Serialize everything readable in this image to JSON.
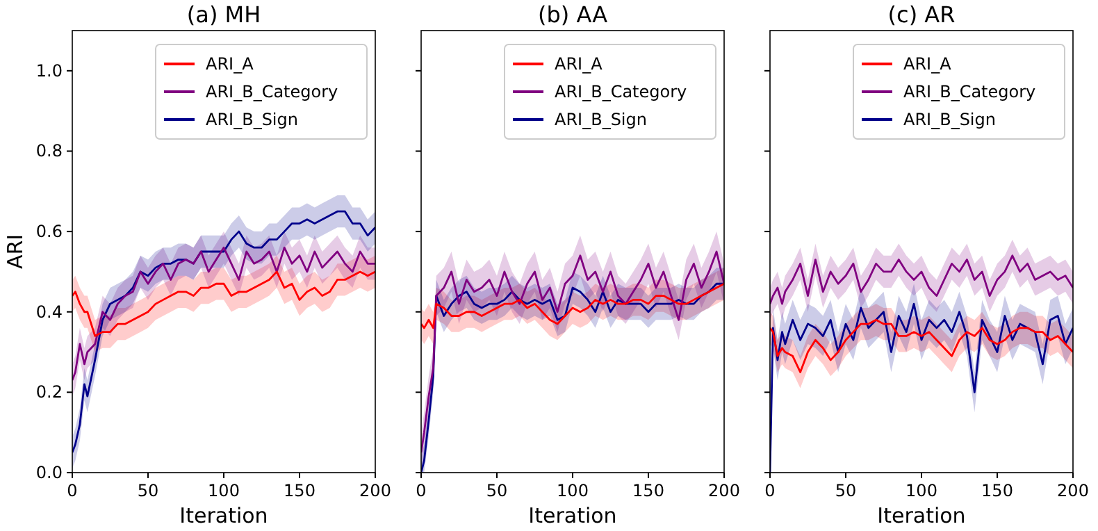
{
  "chart_data": [
    {
      "type": "line",
      "title": "(a) MH",
      "xlabel": "Iteration",
      "ylabel": "ARI",
      "x": [
        0,
        2,
        5,
        8,
        10,
        15,
        20,
        25,
        30,
        35,
        40,
        45,
        50,
        55,
        60,
        65,
        70,
        75,
        80,
        85,
        90,
        95,
        100,
        105,
        110,
        115,
        120,
        125,
        130,
        135,
        140,
        145,
        150,
        155,
        160,
        165,
        170,
        175,
        180,
        185,
        190,
        195,
        200
      ],
      "xlim": [
        0,
        200
      ],
      "xticks": [
        0,
        50,
        100,
        150,
        200
      ],
      "ylim": [
        0,
        1.1
      ],
      "yticks": [
        {
          "value": 0,
          "label": "0.0"
        },
        {
          "value": 0.2,
          "label": "0.2"
        },
        {
          "value": 0.4,
          "label": "0.4"
        },
        {
          "value": 0.6,
          "label": "0.6"
        },
        {
          "value": 0.8,
          "label": "0.8"
        },
        {
          "value": 1,
          "label": "1.0"
        }
      ],
      "legend": "top right",
      "series": [
        {
          "name": "ARI_A",
          "color": "#ff0000",
          "values": [
            0.44,
            0.45,
            0.42,
            0.4,
            0.4,
            0.34,
            0.35,
            0.35,
            0.37,
            0.37,
            0.38,
            0.39,
            0.4,
            0.42,
            0.43,
            0.44,
            0.45,
            0.45,
            0.44,
            0.46,
            0.46,
            0.47,
            0.47,
            0.44,
            0.45,
            0.45,
            0.46,
            0.47,
            0.48,
            0.5,
            0.46,
            0.47,
            0.43,
            0.45,
            0.46,
            0.44,
            0.45,
            0.48,
            0.48,
            0.49,
            0.5,
            0.49,
            0.5
          ],
          "lower": [
            0.4,
            0.41,
            0.38,
            0.36,
            0.36,
            0.3,
            0.31,
            0.31,
            0.33,
            0.33,
            0.34,
            0.35,
            0.36,
            0.38,
            0.39,
            0.4,
            0.41,
            0.41,
            0.4,
            0.42,
            0.42,
            0.43,
            0.43,
            0.4,
            0.41,
            0.41,
            0.42,
            0.43,
            0.44,
            0.46,
            0.42,
            0.43,
            0.39,
            0.41,
            0.42,
            0.4,
            0.41,
            0.44,
            0.44,
            0.45,
            0.46,
            0.45,
            0.46
          ],
          "upper": [
            0.48,
            0.49,
            0.46,
            0.44,
            0.44,
            0.38,
            0.39,
            0.39,
            0.41,
            0.41,
            0.42,
            0.43,
            0.44,
            0.46,
            0.47,
            0.48,
            0.49,
            0.49,
            0.48,
            0.5,
            0.5,
            0.51,
            0.51,
            0.48,
            0.49,
            0.49,
            0.5,
            0.51,
            0.52,
            0.54,
            0.5,
            0.51,
            0.47,
            0.49,
            0.5,
            0.48,
            0.49,
            0.52,
            0.52,
            0.53,
            0.54,
            0.53,
            0.54
          ]
        },
        {
          "name": "ARI_B_Category",
          "color": "#800080",
          "values": [
            0.23,
            0.25,
            0.32,
            0.27,
            0.3,
            0.32,
            0.4,
            0.38,
            0.42,
            0.44,
            0.45,
            0.5,
            0.47,
            0.5,
            0.52,
            0.48,
            0.52,
            0.53,
            0.52,
            0.55,
            0.5,
            0.53,
            0.56,
            0.52,
            0.48,
            0.55,
            0.52,
            0.53,
            0.55,
            0.5,
            0.56,
            0.52,
            0.54,
            0.5,
            0.55,
            0.51,
            0.53,
            0.55,
            0.52,
            0.5,
            0.55,
            0.52,
            0.52
          ],
          "lower": [
            0.19,
            0.21,
            0.28,
            0.23,
            0.26,
            0.28,
            0.36,
            0.34,
            0.38,
            0.4,
            0.41,
            0.46,
            0.43,
            0.46,
            0.48,
            0.44,
            0.48,
            0.49,
            0.48,
            0.51,
            0.46,
            0.49,
            0.52,
            0.48,
            0.44,
            0.51,
            0.48,
            0.49,
            0.51,
            0.46,
            0.52,
            0.48,
            0.5,
            0.46,
            0.51,
            0.47,
            0.49,
            0.51,
            0.48,
            0.46,
            0.51,
            0.48,
            0.48
          ],
          "upper": [
            0.27,
            0.29,
            0.36,
            0.31,
            0.34,
            0.36,
            0.44,
            0.42,
            0.46,
            0.48,
            0.49,
            0.54,
            0.51,
            0.54,
            0.56,
            0.52,
            0.56,
            0.57,
            0.56,
            0.59,
            0.54,
            0.57,
            0.6,
            0.56,
            0.52,
            0.59,
            0.56,
            0.57,
            0.59,
            0.54,
            0.6,
            0.56,
            0.58,
            0.54,
            0.59,
            0.55,
            0.57,
            0.59,
            0.56,
            0.54,
            0.59,
            0.56,
            0.56
          ]
        },
        {
          "name": "ARI_B_Sign",
          "color": "#00008b",
          "values": [
            0.05,
            0.07,
            0.12,
            0.22,
            0.19,
            0.28,
            0.38,
            0.42,
            0.43,
            0.44,
            0.46,
            0.5,
            0.49,
            0.51,
            0.52,
            0.52,
            0.53,
            0.53,
            0.52,
            0.55,
            0.55,
            0.55,
            0.55,
            0.58,
            0.6,
            0.57,
            0.56,
            0.56,
            0.58,
            0.58,
            0.6,
            0.62,
            0.62,
            0.63,
            0.62,
            0.63,
            0.64,
            0.65,
            0.65,
            0.62,
            0.62,
            0.59,
            0.61
          ],
          "lower": [
            0.01,
            0.03,
            0.08,
            0.18,
            0.15,
            0.24,
            0.34,
            0.38,
            0.39,
            0.4,
            0.42,
            0.46,
            0.45,
            0.47,
            0.48,
            0.48,
            0.49,
            0.49,
            0.48,
            0.51,
            0.51,
            0.51,
            0.51,
            0.54,
            0.56,
            0.53,
            0.52,
            0.52,
            0.54,
            0.54,
            0.56,
            0.58,
            0.58,
            0.59,
            0.58,
            0.59,
            0.6,
            0.61,
            0.61,
            0.58,
            0.58,
            0.55,
            0.57
          ],
          "upper": [
            0.09,
            0.11,
            0.16,
            0.26,
            0.23,
            0.32,
            0.42,
            0.46,
            0.47,
            0.48,
            0.5,
            0.54,
            0.53,
            0.55,
            0.56,
            0.56,
            0.57,
            0.57,
            0.56,
            0.59,
            0.59,
            0.59,
            0.59,
            0.62,
            0.64,
            0.61,
            0.6,
            0.6,
            0.62,
            0.62,
            0.64,
            0.66,
            0.66,
            0.67,
            0.66,
            0.67,
            0.68,
            0.69,
            0.69,
            0.66,
            0.66,
            0.63,
            0.65
          ]
        }
      ]
    },
    {
      "type": "line",
      "title": "(b) AA",
      "xlabel": "Iteration",
      "x": [
        0,
        2,
        5,
        8,
        10,
        15,
        20,
        25,
        30,
        35,
        40,
        45,
        50,
        55,
        60,
        65,
        70,
        75,
        80,
        85,
        90,
        95,
        100,
        105,
        110,
        115,
        120,
        125,
        130,
        135,
        140,
        145,
        150,
        155,
        160,
        165,
        170,
        175,
        180,
        185,
        190,
        195,
        200
      ],
      "xlim": [
        0,
        200
      ],
      "xticks": [
        0,
        50,
        100,
        150,
        200
      ],
      "ylim": [
        0,
        1.1
      ],
      "yticks": [
        0,
        0.2,
        0.4,
        0.6,
        0.8,
        1
      ],
      "tick_labels": "x",
      "legend": "top right",
      "series": [
        {
          "name": "ARI_A",
          "color": "#ff0000",
          "values": [
            0.37,
            0.36,
            0.38,
            0.36,
            0.42,
            0.41,
            0.39,
            0.39,
            0.4,
            0.4,
            0.39,
            0.4,
            0.41,
            0.42,
            0.42,
            0.43,
            0.41,
            0.42,
            0.4,
            0.38,
            0.37,
            0.39,
            0.41,
            0.4,
            0.41,
            0.43,
            0.42,
            0.43,
            0.42,
            0.42,
            0.43,
            0.43,
            0.42,
            0.44,
            0.44,
            0.43,
            0.42,
            0.42,
            0.43,
            0.44,
            0.45,
            0.46,
            0.47
          ],
          "lower": [
            0.33,
            0.32,
            0.34,
            0.32,
            0.38,
            0.37,
            0.35,
            0.35,
            0.36,
            0.36,
            0.35,
            0.36,
            0.37,
            0.38,
            0.38,
            0.39,
            0.37,
            0.38,
            0.36,
            0.34,
            0.33,
            0.35,
            0.37,
            0.36,
            0.37,
            0.39,
            0.38,
            0.39,
            0.38,
            0.38,
            0.39,
            0.39,
            0.38,
            0.4,
            0.4,
            0.39,
            0.38,
            0.38,
            0.39,
            0.4,
            0.41,
            0.42,
            0.43
          ],
          "upper": [
            0.41,
            0.4,
            0.42,
            0.4,
            0.46,
            0.45,
            0.43,
            0.43,
            0.44,
            0.44,
            0.43,
            0.44,
            0.45,
            0.46,
            0.46,
            0.47,
            0.45,
            0.46,
            0.44,
            0.42,
            0.41,
            0.43,
            0.45,
            0.44,
            0.45,
            0.47,
            0.46,
            0.47,
            0.46,
            0.46,
            0.47,
            0.47,
            0.46,
            0.48,
            0.48,
            0.47,
            0.46,
            0.46,
            0.47,
            0.48,
            0.49,
            0.5,
            0.51
          ]
        },
        {
          "name": "ARI_B_Category",
          "color": "#800080",
          "values": [
            0.05,
            0.1,
            0.19,
            0.26,
            0.44,
            0.46,
            0.5,
            0.42,
            0.48,
            0.45,
            0.46,
            0.48,
            0.44,
            0.5,
            0.45,
            0.42,
            0.47,
            0.5,
            0.43,
            0.46,
            0.4,
            0.47,
            0.49,
            0.54,
            0.48,
            0.5,
            0.45,
            0.5,
            0.44,
            0.42,
            0.45,
            0.48,
            0.52,
            0.46,
            0.5,
            0.44,
            0.38,
            0.48,
            0.52,
            0.46,
            0.5,
            0.55,
            0.47
          ],
          "lower": [
            0.0,
            0.05,
            0.14,
            0.21,
            0.39,
            0.41,
            0.45,
            0.37,
            0.43,
            0.4,
            0.41,
            0.43,
            0.39,
            0.45,
            0.4,
            0.37,
            0.42,
            0.45,
            0.38,
            0.41,
            0.35,
            0.42,
            0.44,
            0.49,
            0.43,
            0.45,
            0.4,
            0.45,
            0.39,
            0.37,
            0.4,
            0.43,
            0.47,
            0.41,
            0.45,
            0.39,
            0.33,
            0.43,
            0.47,
            0.41,
            0.45,
            0.5,
            0.42
          ],
          "upper": [
            0.1,
            0.15,
            0.24,
            0.31,
            0.49,
            0.51,
            0.55,
            0.47,
            0.53,
            0.5,
            0.51,
            0.53,
            0.49,
            0.55,
            0.5,
            0.47,
            0.52,
            0.55,
            0.48,
            0.51,
            0.45,
            0.52,
            0.54,
            0.59,
            0.53,
            0.55,
            0.5,
            0.55,
            0.49,
            0.47,
            0.5,
            0.53,
            0.57,
            0.51,
            0.55,
            0.49,
            0.43,
            0.53,
            0.57,
            0.51,
            0.55,
            0.6,
            0.52
          ]
        },
        {
          "name": "ARI_B_Sign",
          "color": "#00008b",
          "values": [
            0.0,
            0.03,
            0.13,
            0.24,
            0.44,
            0.39,
            0.42,
            0.44,
            0.45,
            0.42,
            0.41,
            0.42,
            0.42,
            0.43,
            0.45,
            0.43,
            0.42,
            0.43,
            0.42,
            0.43,
            0.38,
            0.39,
            0.46,
            0.45,
            0.43,
            0.4,
            0.45,
            0.4,
            0.43,
            0.42,
            0.42,
            0.42,
            0.4,
            0.42,
            0.42,
            0.42,
            0.43,
            0.42,
            0.42,
            0.44,
            0.45,
            0.47,
            0.47
          ],
          "lower": [
            0.0,
            0.0,
            0.09,
            0.2,
            0.4,
            0.35,
            0.38,
            0.4,
            0.41,
            0.38,
            0.37,
            0.38,
            0.38,
            0.39,
            0.41,
            0.39,
            0.38,
            0.39,
            0.38,
            0.39,
            0.34,
            0.35,
            0.42,
            0.41,
            0.39,
            0.36,
            0.41,
            0.36,
            0.39,
            0.38,
            0.38,
            0.38,
            0.36,
            0.38,
            0.38,
            0.38,
            0.39,
            0.38,
            0.38,
            0.4,
            0.41,
            0.43,
            0.43
          ],
          "upper": [
            0.04,
            0.07,
            0.17,
            0.28,
            0.48,
            0.43,
            0.46,
            0.48,
            0.49,
            0.46,
            0.45,
            0.46,
            0.46,
            0.47,
            0.49,
            0.47,
            0.46,
            0.47,
            0.46,
            0.47,
            0.42,
            0.43,
            0.5,
            0.49,
            0.47,
            0.44,
            0.49,
            0.44,
            0.47,
            0.46,
            0.46,
            0.46,
            0.44,
            0.46,
            0.46,
            0.46,
            0.47,
            0.46,
            0.46,
            0.48,
            0.49,
            0.51,
            0.51
          ]
        }
      ]
    },
    {
      "type": "line",
      "title": "(c) AR",
      "xlabel": "Iteration",
      "x": [
        0,
        2,
        5,
        8,
        10,
        15,
        20,
        25,
        30,
        35,
        40,
        45,
        50,
        55,
        60,
        65,
        70,
        75,
        80,
        85,
        90,
        95,
        100,
        105,
        110,
        115,
        120,
        125,
        130,
        135,
        140,
        145,
        150,
        155,
        160,
        165,
        170,
        175,
        180,
        185,
        190,
        195,
        200
      ],
      "xlim": [
        0,
        200
      ],
      "xticks": [
        0,
        50,
        100,
        150,
        200
      ],
      "ylim": [
        0,
        1.1
      ],
      "yticks": [
        0,
        0.2,
        0.4,
        0.6,
        0.8,
        1
      ],
      "tick_labels": "x",
      "legend": "top right",
      "series": [
        {
          "name": "ARI_A",
          "color": "#ff0000",
          "values": [
            0.36,
            0.35,
            0.29,
            0.31,
            0.3,
            0.29,
            0.25,
            0.3,
            0.33,
            0.31,
            0.28,
            0.3,
            0.33,
            0.35,
            0.37,
            0.37,
            0.38,
            0.37,
            0.37,
            0.34,
            0.34,
            0.35,
            0.34,
            0.35,
            0.33,
            0.31,
            0.29,
            0.33,
            0.35,
            0.34,
            0.36,
            0.33,
            0.32,
            0.33,
            0.35,
            0.36,
            0.36,
            0.35,
            0.35,
            0.33,
            0.34,
            0.32,
            0.3
          ],
          "lower": [
            0.32,
            0.31,
            0.25,
            0.27,
            0.26,
            0.25,
            0.21,
            0.26,
            0.29,
            0.27,
            0.24,
            0.26,
            0.29,
            0.31,
            0.33,
            0.33,
            0.34,
            0.33,
            0.33,
            0.3,
            0.3,
            0.31,
            0.3,
            0.31,
            0.29,
            0.27,
            0.25,
            0.29,
            0.31,
            0.3,
            0.32,
            0.29,
            0.28,
            0.29,
            0.31,
            0.32,
            0.32,
            0.31,
            0.31,
            0.29,
            0.3,
            0.28,
            0.26
          ],
          "upper": [
            0.4,
            0.39,
            0.33,
            0.35,
            0.34,
            0.33,
            0.29,
            0.34,
            0.37,
            0.35,
            0.32,
            0.34,
            0.37,
            0.39,
            0.41,
            0.41,
            0.42,
            0.41,
            0.41,
            0.38,
            0.38,
            0.39,
            0.38,
            0.39,
            0.37,
            0.35,
            0.33,
            0.37,
            0.39,
            0.38,
            0.4,
            0.37,
            0.36,
            0.37,
            0.39,
            0.4,
            0.4,
            0.39,
            0.39,
            0.37,
            0.38,
            0.36,
            0.34
          ]
        },
        {
          "name": "ARI_B_Category",
          "color": "#800080",
          "values": [
            0.42,
            0.44,
            0.46,
            0.42,
            0.45,
            0.48,
            0.52,
            0.44,
            0.53,
            0.45,
            0.5,
            0.47,
            0.49,
            0.52,
            0.45,
            0.48,
            0.52,
            0.5,
            0.5,
            0.53,
            0.5,
            0.48,
            0.5,
            0.46,
            0.44,
            0.48,
            0.52,
            0.5,
            0.53,
            0.48,
            0.5,
            0.44,
            0.48,
            0.5,
            0.54,
            0.5,
            0.52,
            0.48,
            0.49,
            0.5,
            0.48,
            0.49,
            0.46
          ],
          "lower": [
            0.38,
            0.4,
            0.42,
            0.38,
            0.41,
            0.44,
            0.48,
            0.4,
            0.49,
            0.41,
            0.46,
            0.43,
            0.45,
            0.48,
            0.41,
            0.44,
            0.48,
            0.46,
            0.46,
            0.49,
            0.46,
            0.44,
            0.46,
            0.42,
            0.4,
            0.44,
            0.48,
            0.46,
            0.49,
            0.44,
            0.46,
            0.4,
            0.44,
            0.46,
            0.5,
            0.46,
            0.48,
            0.44,
            0.45,
            0.46,
            0.44,
            0.45,
            0.42
          ],
          "upper": [
            0.46,
            0.48,
            0.5,
            0.46,
            0.49,
            0.52,
            0.56,
            0.48,
            0.57,
            0.49,
            0.54,
            0.51,
            0.53,
            0.56,
            0.49,
            0.52,
            0.56,
            0.54,
            0.54,
            0.57,
            0.54,
            0.52,
            0.54,
            0.5,
            0.48,
            0.52,
            0.56,
            0.54,
            0.57,
            0.52,
            0.54,
            0.48,
            0.52,
            0.54,
            0.58,
            0.54,
            0.56,
            0.52,
            0.53,
            0.54,
            0.52,
            0.53,
            0.5
          ]
        },
        {
          "name": "ARI_B_Sign",
          "color": "#00008b",
          "values": [
            0.0,
            0.36,
            0.28,
            0.35,
            0.32,
            0.38,
            0.33,
            0.37,
            0.36,
            0.34,
            0.38,
            0.3,
            0.37,
            0.33,
            0.41,
            0.36,
            0.38,
            0.4,
            0.3,
            0.39,
            0.35,
            0.42,
            0.33,
            0.38,
            0.36,
            0.38,
            0.35,
            0.4,
            0.34,
            0.2,
            0.38,
            0.34,
            0.3,
            0.39,
            0.33,
            0.37,
            0.36,
            0.35,
            0.27,
            0.38,
            0.39,
            0.32,
            0.36
          ],
          "lower": [
            0.0,
            0.31,
            0.23,
            0.3,
            0.27,
            0.33,
            0.28,
            0.32,
            0.31,
            0.29,
            0.33,
            0.25,
            0.32,
            0.28,
            0.36,
            0.31,
            0.33,
            0.35,
            0.25,
            0.34,
            0.3,
            0.37,
            0.28,
            0.33,
            0.31,
            0.33,
            0.3,
            0.35,
            0.29,
            0.15,
            0.33,
            0.29,
            0.25,
            0.34,
            0.28,
            0.32,
            0.31,
            0.3,
            0.22,
            0.33,
            0.34,
            0.27,
            0.31
          ],
          "upper": [
            0.05,
            0.41,
            0.33,
            0.4,
            0.37,
            0.43,
            0.38,
            0.42,
            0.41,
            0.39,
            0.43,
            0.35,
            0.42,
            0.38,
            0.46,
            0.41,
            0.43,
            0.45,
            0.35,
            0.44,
            0.4,
            0.47,
            0.38,
            0.43,
            0.41,
            0.43,
            0.4,
            0.45,
            0.39,
            0.25,
            0.43,
            0.38,
            0.35,
            0.44,
            0.38,
            0.42,
            0.41,
            0.4,
            0.32,
            0.43,
            0.44,
            0.37,
            0.41
          ]
        }
      ]
    }
  ]
}
